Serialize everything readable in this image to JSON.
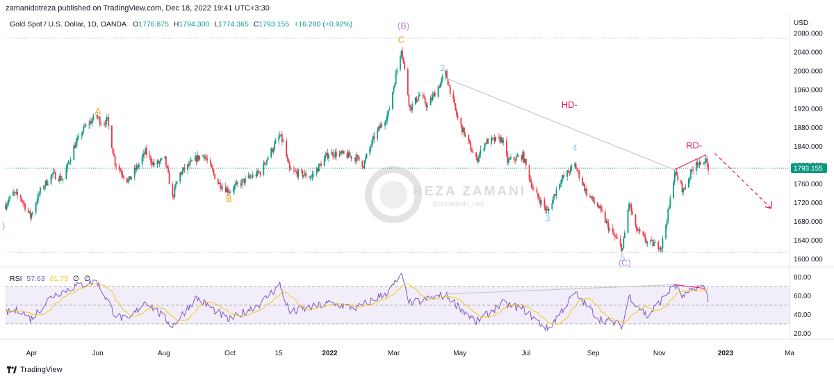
{
  "publisher_line": "zamanidotreza published on TradingView.com, Dec 18, 2022 19:41 UTC+3:30",
  "footer_brand": "TradingView",
  "watermark": {
    "name": "REZA ZAMANI",
    "handle": "@rezabitcoin_new"
  },
  "colors": {
    "up": "#089981",
    "down": "#f23645",
    "accent_red": "#e91e63",
    "wave_orange": "#f7a21b",
    "wave_blue": "#8ec5ee",
    "wave_purple": "#c38ed6",
    "rsi_line": "#7e57c2",
    "rsi_ma": "#f5c518",
    "price_badge": "#089981"
  },
  "chart_data": {
    "type": "candlestick",
    "symbol_line": "Gold Spot / U.S. Dollar, 1D, OANDA",
    "ohlc": {
      "O": "1776.875",
      "H": "1794.300",
      "L": "1774.365",
      "C": "1793.155",
      "change": "+16.280 (+0.92%)"
    },
    "currency": "USD",
    "last_price": 1793.155,
    "last_price_label": "1793.155",
    "y_range": [
      1586,
      2092
    ],
    "y_ticks": [
      2080,
      2040,
      2000,
      1960,
      1920,
      1880,
      1840,
      1800,
      1760,
      1720,
      1680,
      1640,
      1600
    ],
    "y_tick_labels": [
      "2080.000",
      "2040.000",
      "2000.000",
      "1960.000",
      "1920.000",
      "1880.000",
      "1840.000",
      "1800.000",
      "1760.000",
      "1720.000",
      "1680.000",
      "1640.000",
      "1600.000"
    ],
    "x_range": [
      "2021-03-08",
      "2023-03-01"
    ],
    "x_ticks": [
      {
        "date": "2021-04-01",
        "label": "Apr",
        "bold": false
      },
      {
        "date": "2021-06-01",
        "label": "Jun",
        "bold": false
      },
      {
        "date": "2021-08-01",
        "label": "Aug",
        "bold": false
      },
      {
        "date": "2021-10-01",
        "label": "Oct",
        "bold": false
      },
      {
        "date": "2021-11-15",
        "label": "15",
        "bold": false
      },
      {
        "date": "2022-01-01",
        "label": "2022",
        "bold": true
      },
      {
        "date": "2022-03-01",
        "label": "Mar",
        "bold": false
      },
      {
        "date": "2022-05-01",
        "label": "May",
        "bold": false
      },
      {
        "date": "2022-07-01",
        "label": "Jul",
        "bold": false
      },
      {
        "date": "2022-09-01",
        "label": "Sep",
        "bold": false
      },
      {
        "date": "2022-11-01",
        "label": "Nov",
        "bold": false
      },
      {
        "date": "2023-01-01",
        "label": "2023",
        "bold": true
      },
      {
        "date": "2023-03-01",
        "label": "Ma",
        "bold": false
      }
    ],
    "price_path": [
      [
        "2021-03-08",
        1715
      ],
      [
        "2021-03-15",
        1740
      ],
      [
        "2021-03-22",
        1730
      ],
      [
        "2021-03-31",
        1690
      ],
      [
        "2021-04-09",
        1745
      ],
      [
        "2021-04-20",
        1780
      ],
      [
        "2021-04-30",
        1770
      ],
      [
        "2021-05-10",
        1838
      ],
      [
        "2021-05-20",
        1880
      ],
      [
        "2021-05-31",
        1905
      ],
      [
        "2021-06-04",
        1890
      ],
      [
        "2021-06-10",
        1895
      ],
      [
        "2021-06-17",
        1805
      ],
      [
        "2021-06-29",
        1765
      ],
      [
        "2021-07-10",
        1805
      ],
      [
        "2021-07-15",
        1828
      ],
      [
        "2021-07-23",
        1800
      ],
      [
        "2021-08-02",
        1812
      ],
      [
        "2021-08-09",
        1730
      ],
      [
        "2021-08-15",
        1780
      ],
      [
        "2021-08-31",
        1814
      ],
      [
        "2021-09-07",
        1822
      ],
      [
        "2021-09-20",
        1762
      ],
      [
        "2021-09-30",
        1745
      ],
      [
        "2021-10-15",
        1768
      ],
      [
        "2021-10-29",
        1785
      ],
      [
        "2021-11-05",
        1818
      ],
      [
        "2021-11-16",
        1862
      ],
      [
        "2021-11-19",
        1848
      ],
      [
        "2021-11-25",
        1787
      ],
      [
        "2021-12-15",
        1775
      ],
      [
        "2021-12-31",
        1825
      ],
      [
        "2022-01-14",
        1822
      ],
      [
        "2022-01-26",
        1815
      ],
      [
        "2022-02-01",
        1800
      ],
      [
        "2022-02-11",
        1860
      ],
      [
        "2022-02-24",
        1910
      ],
      [
        "2022-03-08",
        2050
      ],
      [
        "2022-03-16",
        1920
      ],
      [
        "2022-03-25",
        1950
      ],
      [
        "2022-04-01",
        1925
      ],
      [
        "2022-04-12",
        1970
      ],
      [
        "2022-04-18",
        1995
      ],
      [
        "2022-04-29",
        1898
      ],
      [
        "2022-05-16",
        1810
      ],
      [
        "2022-05-25",
        1850
      ],
      [
        "2022-06-09",
        1855
      ],
      [
        "2022-06-14",
        1808
      ],
      [
        "2022-06-28",
        1820
      ],
      [
        "2022-07-08",
        1745
      ],
      [
        "2022-07-21",
        1700
      ],
      [
        "2022-08-01",
        1765
      ],
      [
        "2022-08-15",
        1800
      ],
      [
        "2022-08-26",
        1740
      ],
      [
        "2022-09-06",
        1710
      ],
      [
        "2022-09-16",
        1663
      ],
      [
        "2022-09-28",
        1622
      ],
      [
        "2022-10-04",
        1720
      ],
      [
        "2022-10-10",
        1665
      ],
      [
        "2022-10-21",
        1635
      ],
      [
        "2022-11-03",
        1627
      ],
      [
        "2022-11-10",
        1710
      ],
      [
        "2022-11-15",
        1785
      ],
      [
        "2022-11-23",
        1745
      ],
      [
        "2022-12-05",
        1810
      ],
      [
        "2022-12-09",
        1795
      ],
      [
        "2022-12-13",
        1815
      ],
      [
        "2022-12-16",
        1793
      ]
    ],
    "wave_labels": [
      {
        "text": "A",
        "date": "2021-06-01",
        "price": 1908,
        "color": "#f7a21b"
      },
      {
        "text": "B",
        "date": "2021-09-30",
        "price": 1722,
        "color": "#f7a21b"
      },
      {
        "text": "C",
        "date": "2022-03-08",
        "price": 2060,
        "color": "#f7a21b"
      },
      {
        "text": "(B)",
        "date": "2022-03-10",
        "price": 2090,
        "color": "#c38ed6"
      },
      {
        "text": "2",
        "date": "2022-04-15",
        "price": 2000,
        "color": "#8ec5ee"
      },
      {
        "text": "3",
        "date": "2022-07-21",
        "price": 1680,
        "color": "#8ec5ee"
      },
      {
        "text": "4",
        "date": "2022-08-15",
        "price": 1830,
        "color": "#8ec5ee"
      },
      {
        "text": "5",
        "date": "2022-09-28",
        "price": 1596,
        "color": "#8ec5ee"
      },
      {
        "text": "(C)",
        "date": "2022-09-30",
        "price": 1585,
        "color": "#c38ed6"
      },
      {
        "text": "HD-",
        "date": "2022-08-10",
        "price": 1922,
        "color": "#e91e63"
      },
      {
        "text": "RD-",
        "date": "2022-12-03",
        "price": 1835,
        "color": "#e91e63"
      }
    ],
    "trendlines": [
      {
        "from": [
          "2022-04-18",
          1985
        ],
        "to": [
          "2022-11-15",
          1790
        ],
        "color": "#c8c8c8",
        "dashed": false
      },
      {
        "from": [
          "2022-11-15",
          1790
        ],
        "to": [
          "2022-12-14",
          1822
        ],
        "color": "#e91e63",
        "dashed": false
      },
      {
        "from": [
          "2022-12-22",
          1825
        ],
        "to": [
          "2023-02-12",
          1708
        ],
        "color": "#e91e63",
        "dashed": true
      }
    ],
    "h_lines": [
      2070,
      1614
    ],
    "rsi": {
      "name": "RSI",
      "value": "57.63",
      "ma_value": "61.73",
      "extra1": "∅",
      "extra2": "∅",
      "y_range": [
        15,
        85
      ],
      "y_ticks": [
        80,
        60,
        40,
        20
      ],
      "y_tick_labels": [
        "80.00",
        "60.00",
        "40.00",
        "20.00"
      ],
      "bands": [
        70,
        50,
        30
      ],
      "rsi_path": [
        [
          "2021-03-08",
          42
        ],
        [
          "2021-03-22",
          45
        ],
        [
          "2021-03-31",
          35
        ],
        [
          "2021-04-20",
          60
        ],
        [
          "2021-05-10",
          70
        ],
        [
          "2021-05-31",
          76
        ],
        [
          "2021-06-17",
          40
        ],
        [
          "2021-06-29",
          33
        ],
        [
          "2021-07-15",
          55
        ],
        [
          "2021-08-09",
          28
        ],
        [
          "2021-08-31",
          58
        ],
        [
          "2021-09-30",
          34
        ],
        [
          "2021-10-29",
          52
        ],
        [
          "2021-11-16",
          72
        ],
        [
          "2021-11-25",
          42
        ],
        [
          "2021-12-31",
          52
        ],
        [
          "2022-01-26",
          47
        ],
        [
          "2022-02-24",
          64
        ],
        [
          "2022-03-08",
          82
        ],
        [
          "2022-03-16",
          52
        ],
        [
          "2022-04-18",
          61
        ],
        [
          "2022-05-16",
          32
        ],
        [
          "2022-06-09",
          52
        ],
        [
          "2022-06-28",
          46
        ],
        [
          "2022-07-21",
          24
        ],
        [
          "2022-08-15",
          63
        ],
        [
          "2022-09-06",
          36
        ],
        [
          "2022-09-28",
          28
        ],
        [
          "2022-10-04",
          60
        ],
        [
          "2022-10-21",
          38
        ],
        [
          "2022-11-15",
          72
        ],
        [
          "2022-11-23",
          58
        ],
        [
          "2022-12-05",
          70
        ],
        [
          "2022-12-13",
          68
        ],
        [
          "2022-12-16",
          57.6
        ]
      ],
      "divergence_lines": [
        {
          "from": [
            "2022-04-18",
            62
          ],
          "to": [
            "2022-11-15",
            72
          ],
          "color": "#c8c8c8"
        },
        {
          "from": [
            "2022-11-15",
            72
          ],
          "to": [
            "2022-12-13",
            68
          ],
          "color": "#e91e63"
        }
      ]
    }
  }
}
